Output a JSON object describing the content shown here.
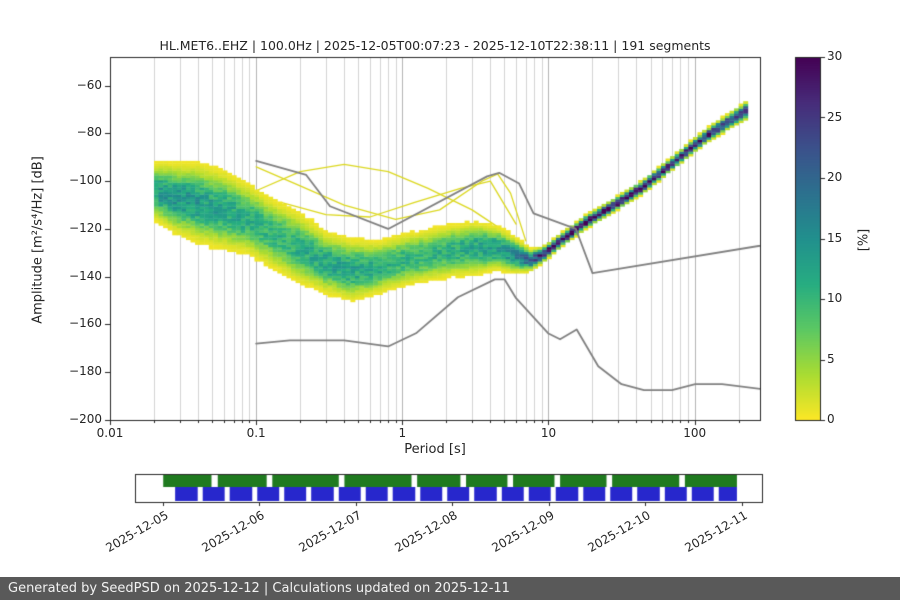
{
  "metadata": {
    "network": "HL",
    "station": "MET6",
    "channel": "EHZ",
    "sampling_rate": "100.0Hz",
    "start_time": "2025-12-05T00:07:23",
    "end_time": "2025-12-10T22:38:11",
    "segments": 191
  },
  "chart_data": {
    "type": "heatmap",
    "title": "HL.MET6..EHZ | 100.0Hz | 2025-12-05T00:07:23 - 2025-12-10T22:38:11 | 191 segments",
    "xlabel": "Period [s]",
    "ylabel": "Amplitude [m²/s⁴/Hz] [dB]",
    "xscale": "log",
    "xlim": [
      0.01,
      280
    ],
    "ylim": [
      -200,
      -48
    ],
    "x_ticks": [
      0.01,
      0.1,
      1,
      10,
      100
    ],
    "x_tick_labels": [
      "0.01",
      "0.1",
      "1",
      "10",
      "100"
    ],
    "y_ticks": [
      -60,
      -80,
      -100,
      -120,
      -140,
      -160,
      -180,
      -200
    ],
    "grid": true,
    "colorbar": {
      "label": "[%]",
      "min": 0,
      "max": 30,
      "ticks": [
        0,
        5,
        10,
        15,
        20,
        25,
        30
      ],
      "colormap": "viridis_r"
    },
    "ppsd": {
      "comment": "PPSD probability density summary: mode amplitude, spread and peak probability per period",
      "periods": [
        0.02,
        0.028,
        0.04,
        0.06,
        0.09,
        0.13,
        0.2,
        0.3,
        0.45,
        0.7,
        1.0,
        1.5,
        2.2,
        3.2,
        4.5,
        6.0,
        7.5,
        9.0,
        12,
        18,
        28,
        45,
        75,
        120,
        180,
        230
      ],
      "mode_db": [
        -104,
        -107,
        -109,
        -112,
        -116,
        -122,
        -128,
        -134,
        -137,
        -136,
        -133,
        -131,
        -129,
        -128,
        -128,
        -131,
        -133,
        -131,
        -125,
        -117,
        -110,
        -102,
        -91,
        -81,
        -74,
        -70
      ],
      "spread_db": [
        6.5,
        8,
        9,
        9,
        8,
        8,
        8,
        7,
        7,
        6,
        6,
        6,
        6,
        6,
        5,
        4,
        2.5,
        1.8,
        1.5,
        1.5,
        1.5,
        1.5,
        1.5,
        1.6,
        1.8,
        2.2
      ],
      "peak_pct": [
        13,
        14,
        13,
        12,
        11,
        10,
        11,
        12,
        12,
        11,
        10,
        10,
        11,
        12,
        13,
        15,
        20,
        26,
        30,
        30,
        29,
        28,
        27,
        26,
        24,
        21
      ]
    },
    "outlier_traces": [
      {
        "periods": [
          0.06,
          0.1,
          0.2,
          0.4,
          0.8,
          1.5,
          3.0,
          5.0,
          7.0
        ],
        "db": [
          -113,
          -104,
          -96,
          -93,
          -96,
          -103,
          -112,
          -121,
          -128
        ]
      },
      {
        "periods": [
          0.1,
          0.2,
          0.4,
          0.9,
          1.8,
          3.5,
          4.5,
          5.5,
          7.0
        ],
        "db": [
          -94,
          -102,
          -110,
          -116,
          -112,
          -100,
          -97,
          -105,
          -125
        ]
      },
      {
        "periods": [
          0.15,
          0.3,
          0.6,
          1.2,
          2.5,
          4.0,
          6.0
        ],
        "db": [
          -109,
          -114,
          -115,
          -109,
          -103,
          -100,
          -118
        ]
      }
    ],
    "noise_models": {
      "color": "#808080",
      "nhnm": {
        "periods": [
          0.1,
          0.22,
          0.32,
          0.8,
          3.8,
          4.6,
          6.3,
          7.9,
          15.4,
          20.0,
          354.8
        ],
        "db": [
          -91.5,
          -97.4,
          -110.5,
          -120.0,
          -98.0,
          -96.5,
          -101.0,
          -113.5,
          -120.0,
          -138.5,
          -126.0
        ]
      },
      "nlnm": {
        "periods": [
          0.1,
          0.17,
          0.4,
          0.8,
          1.24,
          2.4,
          4.3,
          5.0,
          6.0,
          10.0,
          12.0,
          15.6,
          21.9,
          31.6,
          45.0,
          70.0,
          101.0,
          154.0,
          328.0
        ],
        "db": [
          -168.0,
          -166.7,
          -166.7,
          -169.2,
          -163.7,
          -148.6,
          -141.1,
          -141.1,
          -149.0,
          -163.8,
          -166.2,
          -162.1,
          -177.5,
          -185.0,
          -187.5,
          -187.5,
          -185.0,
          -185.0,
          -187.5
        ]
      }
    }
  },
  "timeline": {
    "ticks": [
      "2025-12-05",
      "2025-12-06",
      "2025-12-07",
      "2025-12-08",
      "2025-12-09",
      "2025-12-10",
      "2025-12-11"
    ],
    "first_tick_frac": 0.044,
    "tick_spacing_frac": 0.154,
    "green_color": "#1f7a1f",
    "blue_color": "#2727cc",
    "green_segments": [
      [
        0.045,
        0.122
      ],
      [
        0.132,
        0.21
      ],
      [
        0.219,
        0.325
      ],
      [
        0.334,
        0.441
      ],
      [
        0.45,
        0.519
      ],
      [
        0.528,
        0.594
      ],
      [
        0.603,
        0.669
      ],
      [
        0.678,
        0.752
      ],
      [
        0.761,
        0.868
      ],
      [
        0.877,
        0.96
      ]
    ],
    "blue_segments": [
      [
        0.064,
        0.1
      ],
      [
        0.108,
        0.143
      ],
      [
        0.151,
        0.187
      ],
      [
        0.195,
        0.23
      ],
      [
        0.238,
        0.273
      ],
      [
        0.281,
        0.317
      ],
      [
        0.325,
        0.36
      ],
      [
        0.368,
        0.403
      ],
      [
        0.411,
        0.447
      ],
      [
        0.455,
        0.49
      ],
      [
        0.498,
        0.533
      ],
      [
        0.541,
        0.577
      ],
      [
        0.585,
        0.62
      ],
      [
        0.628,
        0.663
      ],
      [
        0.671,
        0.707
      ],
      [
        0.715,
        0.75
      ],
      [
        0.758,
        0.793
      ],
      [
        0.801,
        0.837
      ],
      [
        0.845,
        0.88
      ],
      [
        0.888,
        0.923
      ],
      [
        0.931,
        0.96
      ]
    ]
  },
  "footer": {
    "text": "Generated by SeedPSD on 2025-12-12 | Calculations updated on 2025-12-11",
    "bg": "#595959",
    "fg": "#f2f2f2"
  }
}
